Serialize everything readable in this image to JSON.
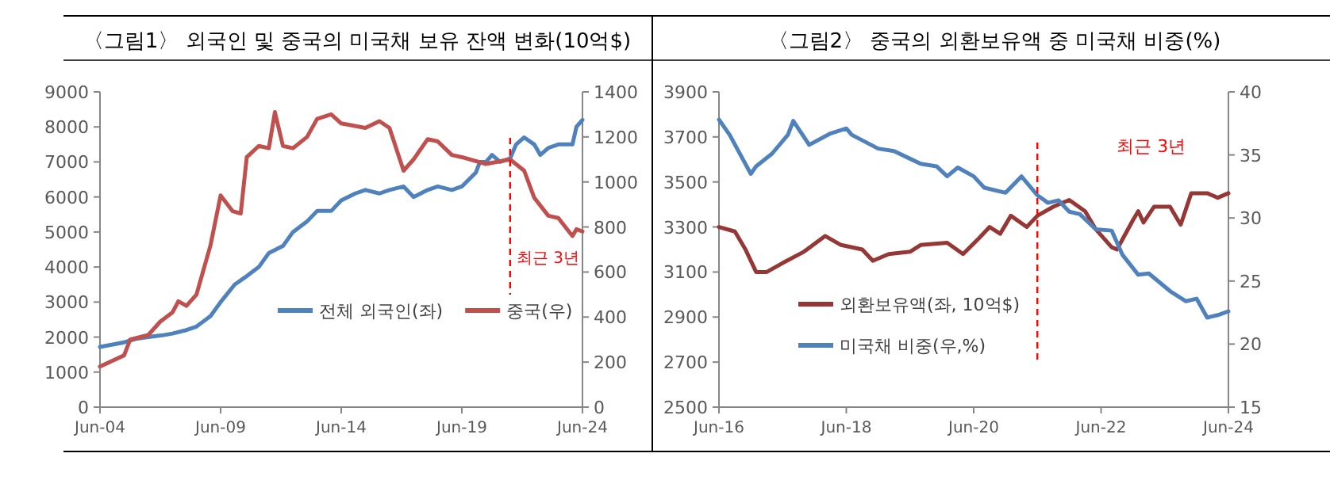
{
  "chart_data": [
    {
      "type": "line",
      "title": "〈그림1〉 외국인 및 중국의 미국채 보유 잔액 변화(10억$)",
      "xlim": [
        "2004-06",
        "2024-06"
      ],
      "xticks": [
        {
          "value": "2004-06",
          "label": "Jun-04"
        },
        {
          "value": "2009-06",
          "label": "Jun-09"
        },
        {
          "value": "2014-06",
          "label": "Jun-14"
        },
        {
          "value": "2019-06",
          "label": "Jun-19"
        },
        {
          "value": "2024-06",
          "label": "Jun-24"
        }
      ],
      "ylim": [
        0,
        9000
      ],
      "yticks": [
        0,
        1000,
        2000,
        3000,
        4000,
        5000,
        6000,
        7000,
        8000,
        9000
      ],
      "y2lim": [
        0,
        1400
      ],
      "y2ticks": [
        0,
        200,
        400,
        600,
        800,
        1000,
        1200,
        1400
      ],
      "grid": false,
      "legend": "center right",
      "marker": "none",
      "line_style": "solid",
      "ref_lines": [
        {
          "axis": "x",
          "value": "2021-06",
          "label": "최근 3년",
          "color": "#ff0000",
          "line_style": "dashed"
        }
      ],
      "series": [
        {
          "name": "전체 외국인(좌)",
          "color": "#4f81bd",
          "x": [
            "2004-06",
            "2005-06",
            "2005-12",
            "2006-06",
            "2007-01",
            "2007-06",
            "2008-01",
            "2008-06",
            "2009-01",
            "2009-06",
            "2010-01",
            "2010-06",
            "2011-01",
            "2011-06",
            "2012-01",
            "2012-06",
            "2013-01",
            "2013-06",
            "2014-01",
            "2014-06",
            "2015-01",
            "2015-06",
            "2016-01",
            "2016-06",
            "2017-01",
            "2017-06",
            "2018-01",
            "2018-06",
            "2019-01",
            "2019-06",
            "2020-01",
            "2020-03",
            "2020-06",
            "2020-09",
            "2021-01",
            "2021-06",
            "2021-09",
            "2022-01",
            "2022-06",
            "2022-09",
            "2023-01",
            "2023-06",
            "2024-01",
            "2024-03",
            "2024-06"
          ],
          "values": [
            1720,
            1850,
            1950,
            2000,
            2050,
            2100,
            2200,
            2300,
            2600,
            3000,
            3500,
            3700,
            4000,
            4400,
            4600,
            5000,
            5300,
            5600,
            5600,
            5900,
            6100,
            6200,
            6100,
            6200,
            6300,
            6000,
            6200,
            6300,
            6200,
            6300,
            6700,
            7000,
            7000,
            7200,
            7000,
            7100,
            7500,
            7700,
            7500,
            7200,
            7400,
            7500,
            7500,
            8000,
            8200
          ]
        },
        {
          "name": "중국(우)",
          "color": "#c0504d",
          "axis": "y2",
          "x": [
            "2004-06",
            "2005-06",
            "2005-09",
            "2006-06",
            "2006-12",
            "2007-06",
            "2007-09",
            "2008-01",
            "2008-06",
            "2009-01",
            "2009-06",
            "2009-12",
            "2010-04",
            "2010-07",
            "2011-01",
            "2011-06",
            "2011-09",
            "2012-01",
            "2012-06",
            "2013-01",
            "2013-06",
            "2014-01",
            "2014-06",
            "2015-06",
            "2016-01",
            "2016-06",
            "2017-01",
            "2017-06",
            "2018-01",
            "2018-06",
            "2019-01",
            "2019-06",
            "2020-06",
            "2021-06",
            "2022-01",
            "2022-06",
            "2023-01",
            "2023-06",
            "2024-01",
            "2024-03",
            "2024-06"
          ],
          "values": [
            180,
            230,
            300,
            320,
            380,
            420,
            470,
            450,
            500,
            720,
            940,
            870,
            860,
            1110,
            1160,
            1150,
            1310,
            1160,
            1150,
            1200,
            1280,
            1300,
            1260,
            1240,
            1270,
            1240,
            1050,
            1100,
            1190,
            1180,
            1120,
            1110,
            1080,
            1100,
            1050,
            930,
            850,
            840,
            760,
            790,
            780
          ]
        }
      ]
    },
    {
      "type": "line",
      "title": "〈그림2〉 중국의 외환보유액 중 미국채 비중(%)",
      "xlim": [
        "2016-06",
        "2024-06"
      ],
      "xticks": [
        {
          "value": "2016-06",
          "label": "Jun-16"
        },
        {
          "value": "2018-06",
          "label": "Jun-18"
        },
        {
          "value": "2020-06",
          "label": "Jun-20"
        },
        {
          "value": "2022-06",
          "label": "Jun-22"
        },
        {
          "value": "2024-06",
          "label": "Jun-24"
        }
      ],
      "ylim": [
        2500,
        3900
      ],
      "yticks": [
        2500,
        2700,
        2900,
        3100,
        3300,
        3500,
        3700,
        3900
      ],
      "y2lim": [
        15,
        40
      ],
      "y2ticks": [
        15,
        20,
        25,
        30,
        35,
        40
      ],
      "grid": false,
      "legend": "bottom left",
      "marker": "none",
      "line_style": "solid",
      "ref_lines": [
        {
          "axis": "x",
          "value": "2021-06",
          "label": "최근 3년",
          "color": "#ff0000",
          "line_style": "dashed"
        }
      ],
      "series": [
        {
          "name": "외환보유액(좌, 10억$)",
          "color": "#953735",
          "x": [
            "2016-06",
            "2016-09",
            "2016-11",
            "2017-01",
            "2017-03",
            "2017-06",
            "2017-10",
            "2018-02",
            "2018-05",
            "2018-09",
            "2018-11",
            "2019-02",
            "2019-06",
            "2019-08",
            "2020-01",
            "2020-04",
            "2020-07",
            "2020-09",
            "2020-11",
            "2021-01",
            "2021-04",
            "2021-06",
            "2021-09",
            "2021-12",
            "2022-03",
            "2022-05",
            "2022-08",
            "2022-09",
            "2022-12",
            "2023-01",
            "2023-02",
            "2023-04",
            "2023-07",
            "2023-09",
            "2023-11",
            "2024-02",
            "2024-04",
            "2024-06"
          ],
          "values": [
            3300,
            3280,
            3200,
            3100,
            3100,
            3140,
            3190,
            3260,
            3220,
            3200,
            3150,
            3180,
            3190,
            3220,
            3230,
            3180,
            3250,
            3300,
            3270,
            3350,
            3300,
            3350,
            3390,
            3420,
            3370,
            3290,
            3210,
            3200,
            3330,
            3370,
            3320,
            3390,
            3390,
            3310,
            3450,
            3450,
            3430,
            3450
          ]
        },
        {
          "name": "미국채 비중(우,%)",
          "color": "#4f81bd",
          "axis": "y2",
          "x": [
            "2016-06",
            "2016-08",
            "2016-12",
            "2017-01",
            "2017-04",
            "2017-07",
            "2017-08",
            "2017-11",
            "2018-03",
            "2018-06",
            "2018-07",
            "2018-12",
            "2019-03",
            "2019-06",
            "2019-08",
            "2019-11",
            "2020-01",
            "2020-03",
            "2020-06",
            "2020-08",
            "2020-12",
            "2021-03",
            "2021-06",
            "2021-08",
            "2021-10",
            "2021-12",
            "2022-02",
            "2022-05",
            "2022-08",
            "2022-10",
            "2023-01",
            "2023-03",
            "2023-07",
            "2023-10",
            "2023-12",
            "2024-02",
            "2024-04",
            "2024-06"
          ],
          "values": [
            37.8,
            36.6,
            33.5,
            34.1,
            35.1,
            36.6,
            37.7,
            35.8,
            36.7,
            37.1,
            36.6,
            35.5,
            35.3,
            34.7,
            34.3,
            34.1,
            33.3,
            34.0,
            33.3,
            32.4,
            32.0,
            33.3,
            31.8,
            31.2,
            31.4,
            30.5,
            30.3,
            29.1,
            29.0,
            27.1,
            25.5,
            25.6,
            24.2,
            23.4,
            23.6,
            22.1,
            22.3,
            22.6
          ]
        }
      ]
    }
  ]
}
